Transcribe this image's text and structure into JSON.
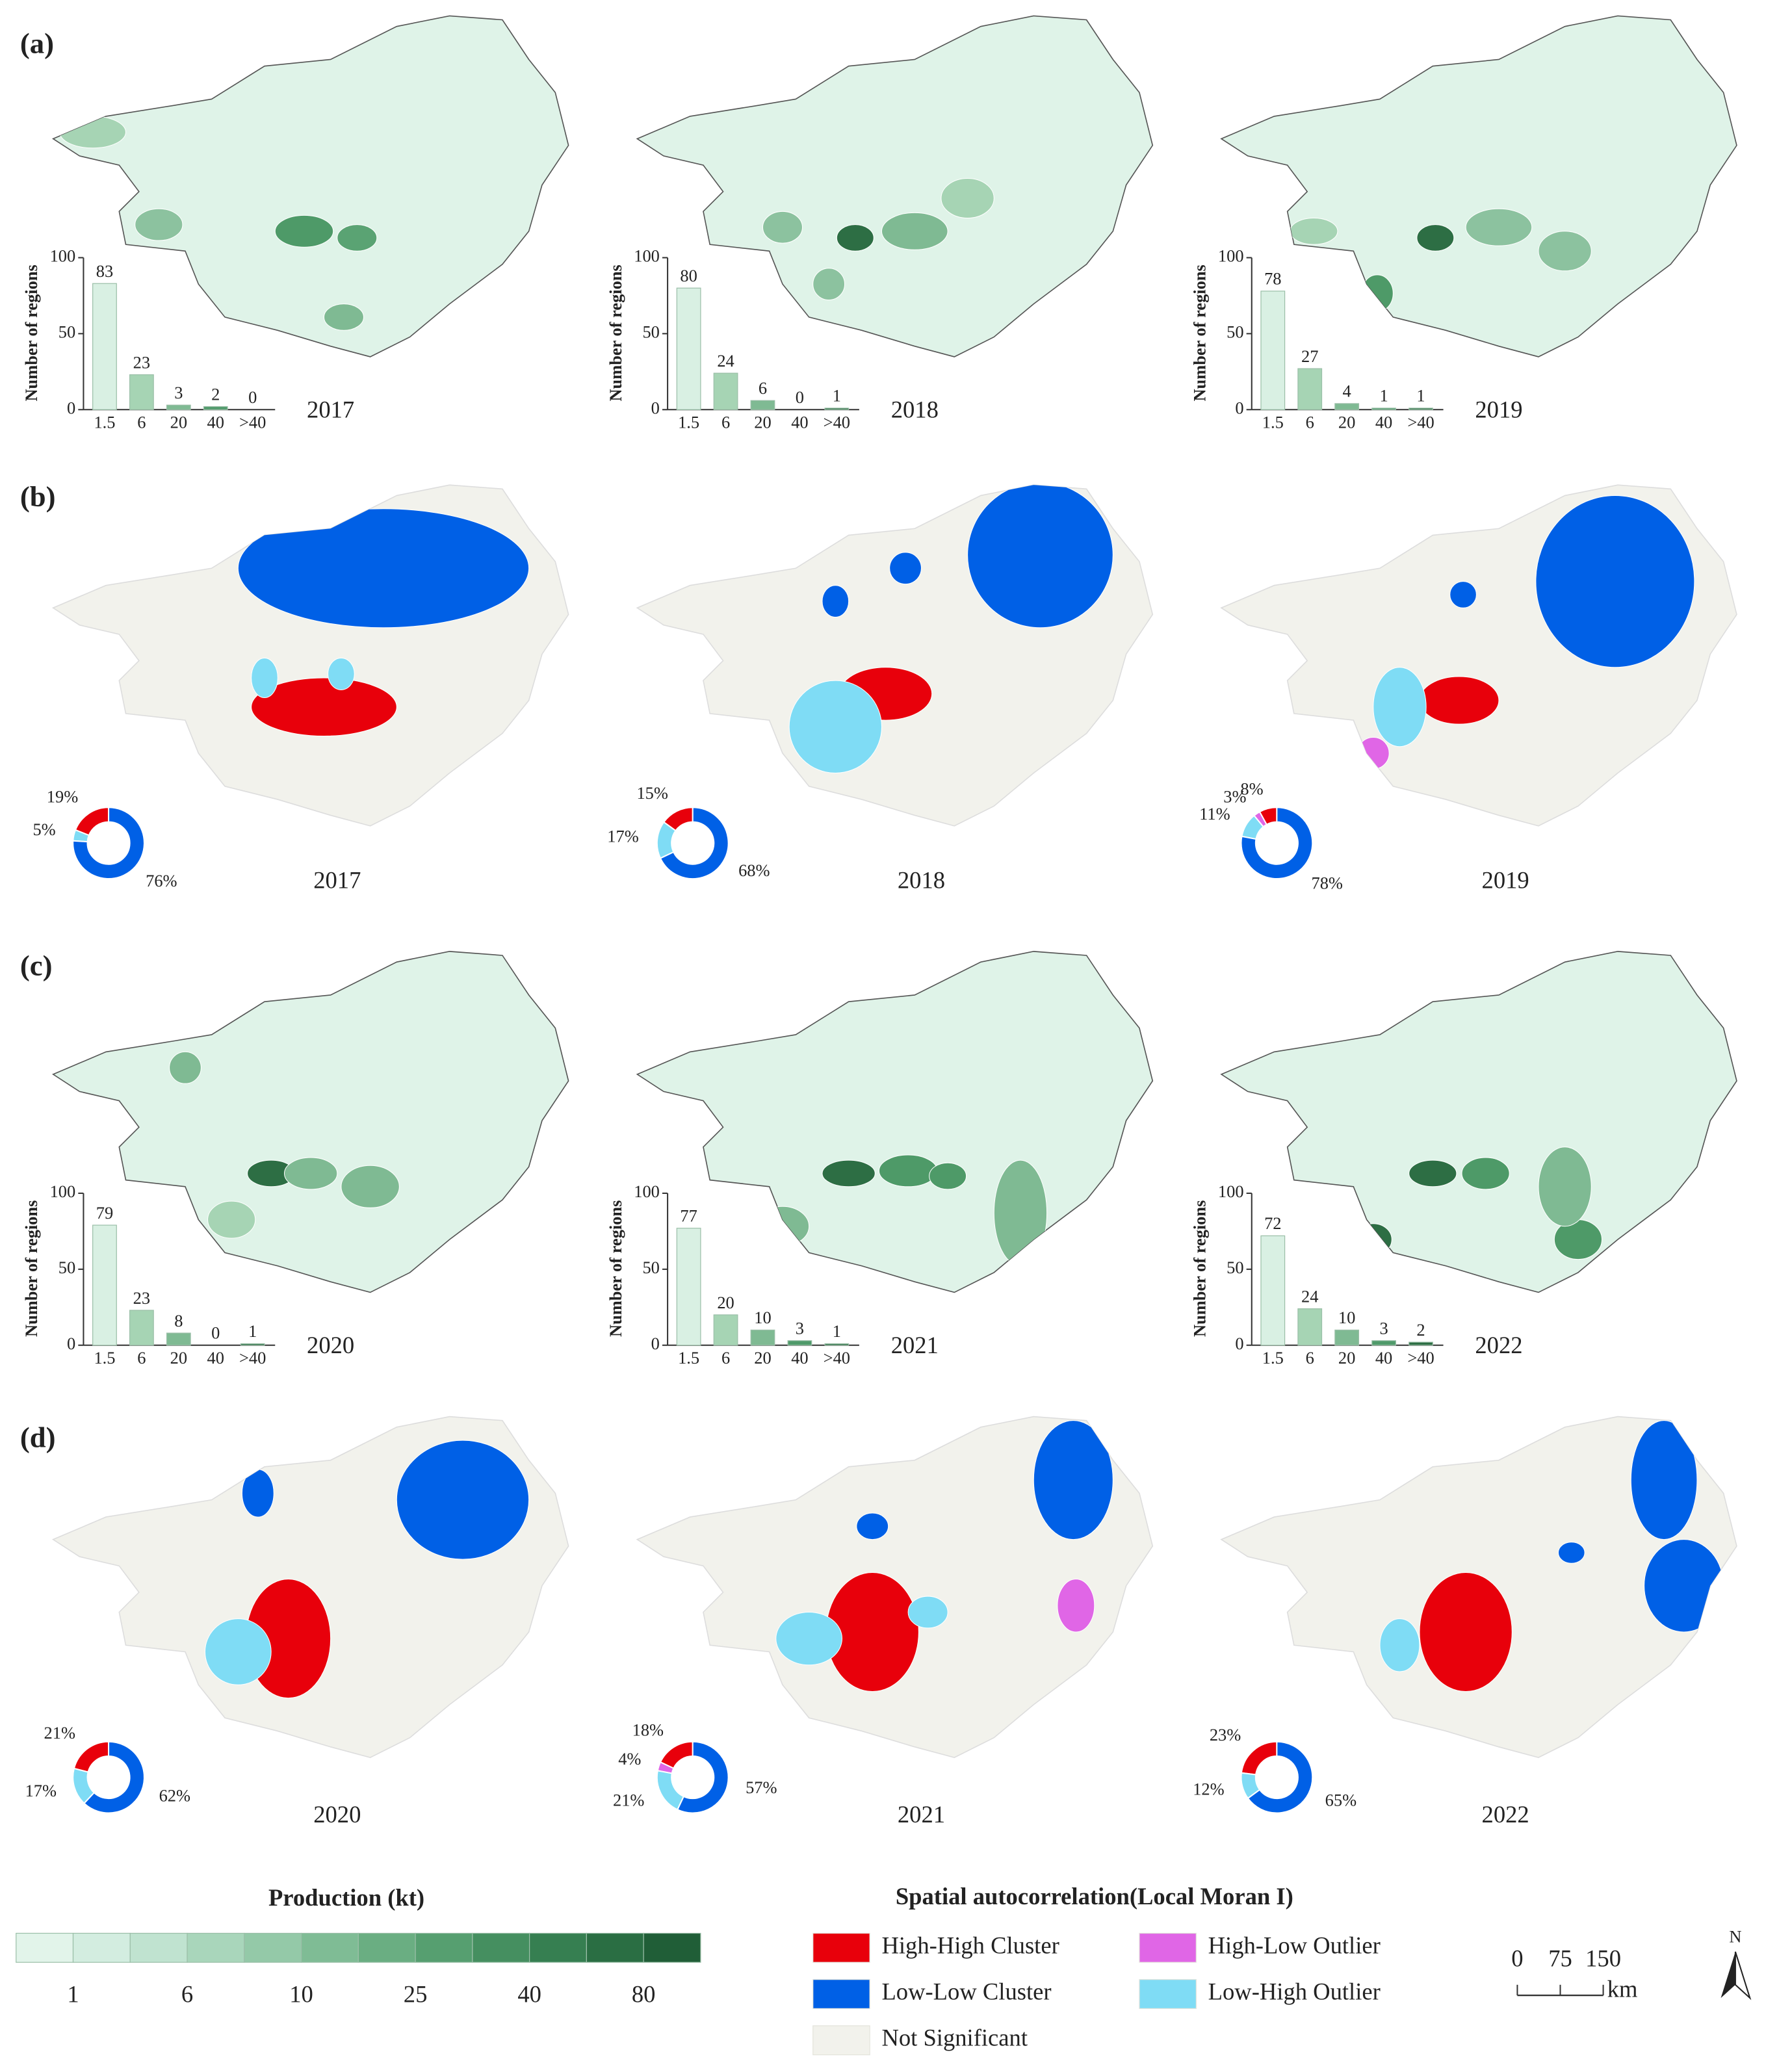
{
  "panel_labels": [
    "(a)",
    "(b)",
    "(c)",
    "(d)"
  ],
  "chart_data": [
    {
      "type": "bar",
      "title": "2017",
      "y_label": "Number of regions",
      "categories": [
        "1.5",
        "6",
        "20",
        "40",
        ">40"
      ],
      "values": [
        83,
        23,
        3,
        2,
        0
      ],
      "colors": [
        "#d9f0e3",
        "#a6d4b4",
        "#7fba93",
        "#4f9a6a",
        "#2d6e44"
      ],
      "ylim": [
        0,
        100
      ],
      "yticks": [
        0,
        50,
        100
      ]
    },
    {
      "type": "bar",
      "title": "2018",
      "y_label": "Number of regions",
      "categories": [
        "1.5",
        "6",
        "20",
        "40",
        ">40"
      ],
      "values": [
        80,
        24,
        6,
        0,
        1
      ],
      "colors": [
        "#d9f0e3",
        "#a6d4b4",
        "#7fba93",
        "#4f9a6a",
        "#2d6e44"
      ],
      "ylim": [
        0,
        100
      ],
      "yticks": [
        0,
        50,
        100
      ]
    },
    {
      "type": "bar",
      "title": "2019",
      "y_label": "Number of regions",
      "categories": [
        "1.5",
        "6",
        "20",
        "40",
        ">40"
      ],
      "values": [
        78,
        27,
        4,
        1,
        1
      ],
      "colors": [
        "#d9f0e3",
        "#a6d4b4",
        "#7fba93",
        "#4f9a6a",
        "#2d6e44"
      ],
      "ylim": [
        0,
        100
      ],
      "yticks": [
        0,
        50,
        100
      ]
    },
    {
      "type": "donut",
      "title": "2017",
      "values": [
        19,
        5,
        76
      ],
      "value_labels": [
        "19%",
        "5%",
        "76%"
      ],
      "colors": [
        "#e8000b",
        "#7fdcf5",
        "#0060e6"
      ]
    },
    {
      "type": "donut",
      "title": "2018",
      "values": [
        15,
        17,
        68
      ],
      "value_labels": [
        "15%",
        "17%",
        "68%"
      ],
      "colors": [
        "#e8000b",
        "#7fdcf5",
        "#0060e6"
      ]
    },
    {
      "type": "donut",
      "title": "2019",
      "values": [
        8,
        3,
        11,
        78
      ],
      "value_labels": [
        "8%",
        "3%",
        "11%",
        "78%"
      ],
      "colors": [
        "#e8000b",
        "#e066e6",
        "#7fdcf5",
        "#0060e6"
      ]
    },
    {
      "type": "bar",
      "title": "2020",
      "y_label": "Number of regions",
      "categories": [
        "1.5",
        "6",
        "20",
        "40",
        ">40"
      ],
      "values": [
        79,
        23,
        8,
        0,
        1
      ],
      "colors": [
        "#d9f0e3",
        "#a6d4b4",
        "#7fba93",
        "#4f9a6a",
        "#2d6e44"
      ],
      "ylim": [
        0,
        100
      ],
      "yticks": [
        0,
        50,
        100
      ]
    },
    {
      "type": "bar",
      "title": "2021",
      "y_label": "Number of regions",
      "categories": [
        "1.5",
        "6",
        "20",
        "40",
        ">40"
      ],
      "values": [
        77,
        20,
        10,
        3,
        1
      ],
      "colors": [
        "#d9f0e3",
        "#a6d4b4",
        "#7fba93",
        "#4f9a6a",
        "#2d6e44"
      ],
      "ylim": [
        0,
        100
      ],
      "yticks": [
        0,
        50,
        100
      ]
    },
    {
      "type": "bar",
      "title": "2022",
      "y_label": "Number of regions",
      "categories": [
        "1.5",
        "6",
        "20",
        "40",
        ">40"
      ],
      "values": [
        72,
        24,
        10,
        3,
        2
      ],
      "colors": [
        "#d9f0e3",
        "#a6d4b4",
        "#7fba93",
        "#4f9a6a",
        "#2d6e44"
      ],
      "ylim": [
        0,
        100
      ],
      "yticks": [
        0,
        50,
        100
      ]
    },
    {
      "type": "donut",
      "title": "2020",
      "values": [
        21,
        17,
        62
      ],
      "value_labels": [
        "21%",
        "17%",
        "62%"
      ],
      "colors": [
        "#e8000b",
        "#7fdcf5",
        "#0060e6"
      ]
    },
    {
      "type": "donut",
      "title": "2021",
      "values": [
        18,
        4,
        21,
        57
      ],
      "value_labels": [
        "18%",
        "4%",
        "21%",
        "57%"
      ],
      "colors": [
        "#e8000b",
        "#e066e6",
        "#7fdcf5",
        "#0060e6"
      ]
    },
    {
      "type": "donut",
      "title": "2022",
      "values": [
        23,
        12,
        65
      ],
      "value_labels": [
        "23%",
        "12%",
        "65%"
      ],
      "colors": [
        "#e8000b",
        "#7fdcf5",
        "#0060e6"
      ]
    }
  ],
  "production_legend": {
    "title": "Production (kt)",
    "colors": [
      "#e2f4ea",
      "#d3ede0",
      "#c0e3d0",
      "#a9d6bb",
      "#94c9a8",
      "#7fbc95",
      "#6aae82",
      "#569f70",
      "#458f60",
      "#367f51",
      "#2a6e43",
      "#205e37"
    ],
    "ticks": [
      1,
      6,
      10,
      25,
      40,
      80
    ]
  },
  "moran_legend": {
    "title": "Spatial autocorrelation(Local Moran I)",
    "items": [
      {
        "label": "High-High Cluster",
        "color": "#e8000b"
      },
      {
        "label": "High-Low Outlier",
        "color": "#e066e6"
      },
      {
        "label": "Low-Low Cluster",
        "color": "#0060e6"
      },
      {
        "label": "Low-High Outlier",
        "color": "#7fdcf5"
      },
      {
        "label": "Not Significant",
        "color": "#f2f2ec"
      }
    ]
  },
  "scale_bar": {
    "ticks": [
      0,
      75,
      150
    ],
    "unit": "km"
  },
  "north_label": "N"
}
